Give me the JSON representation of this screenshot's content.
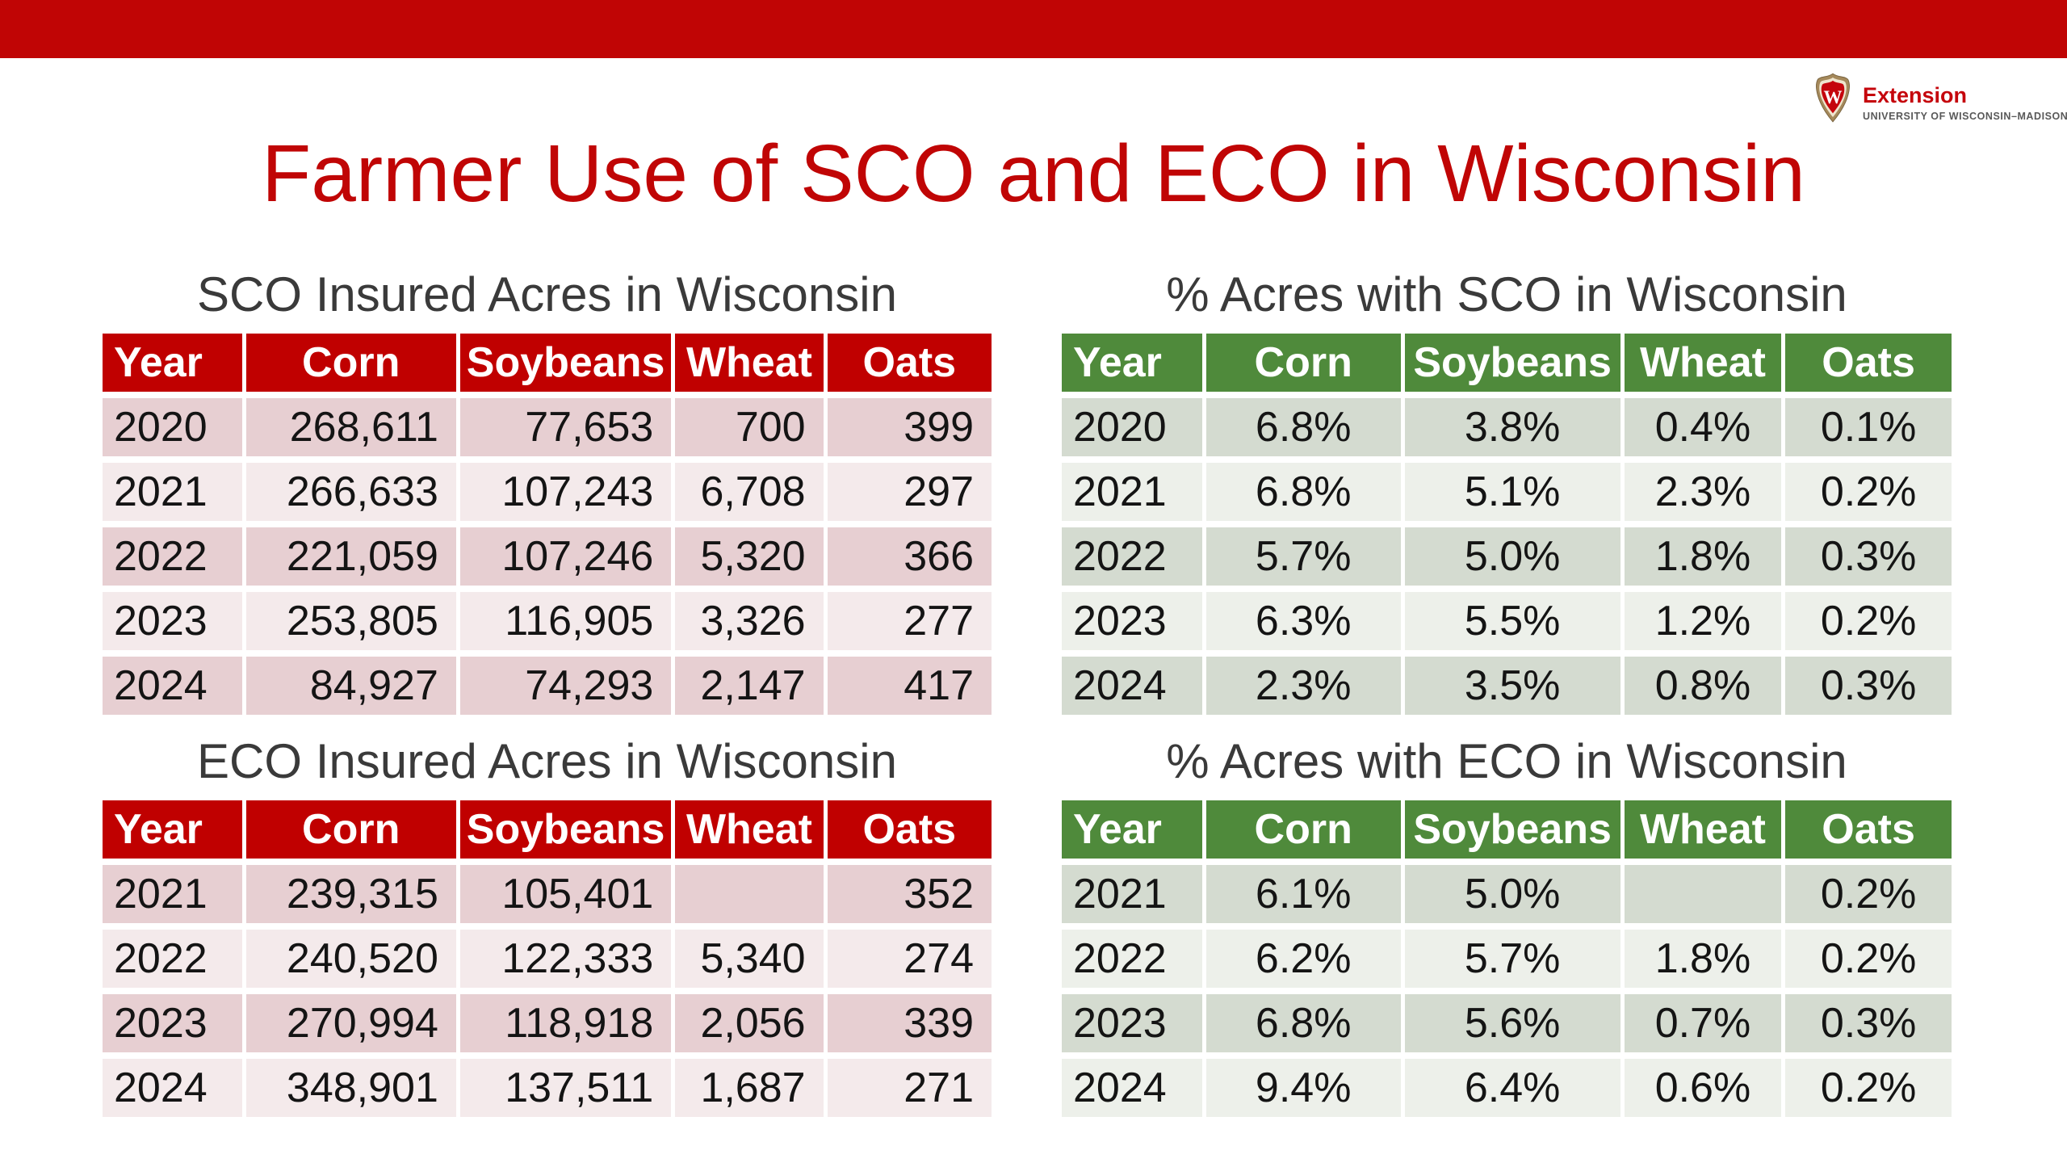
{
  "title": "Farmer Use of SCO and ECO in Wisconsin",
  "logo": {
    "crest_letter": "W",
    "extension": "Extension",
    "university": "UNIVERSITY OF WISCONSIN–MADISON"
  },
  "tables": [
    {
      "title": "SCO Insured Acres in Wisconsin",
      "theme": "red",
      "columns": [
        "Year",
        "Corn",
        "Soybeans",
        "Wheat",
        "Oats"
      ],
      "rows": [
        [
          "2020",
          "268,611",
          "77,653",
          "700",
          "399"
        ],
        [
          "2021",
          "266,633",
          "107,243",
          "6,708",
          "297"
        ],
        [
          "2022",
          "221,059",
          "107,246",
          "5,320",
          "366"
        ],
        [
          "2023",
          "253,805",
          "116,905",
          "3,326",
          "277"
        ],
        [
          "2024",
          "84,927",
          "74,293",
          "2,147",
          "417"
        ]
      ]
    },
    {
      "title": "% Acres with SCO in Wisconsin",
      "theme": "green",
      "columns": [
        "Year",
        "Corn",
        "Soybeans",
        "Wheat",
        "Oats"
      ],
      "rows": [
        [
          "2020",
          "6.8%",
          "3.8%",
          "0.4%",
          "0.1%"
        ],
        [
          "2021",
          "6.8%",
          "5.1%",
          "2.3%",
          "0.2%"
        ],
        [
          "2022",
          "5.7%",
          "5.0%",
          "1.8%",
          "0.3%"
        ],
        [
          "2023",
          "6.3%",
          "5.5%",
          "1.2%",
          "0.2%"
        ],
        [
          "2024",
          "2.3%",
          "3.5%",
          "0.8%",
          "0.3%"
        ]
      ]
    },
    {
      "title": "ECO Insured Acres in Wisconsin",
      "theme": "red",
      "columns": [
        "Year",
        "Corn",
        "Soybeans",
        "Wheat",
        "Oats"
      ],
      "rows": [
        [
          "2021",
          "239,315",
          "105,401",
          "",
          "352"
        ],
        [
          "2022",
          "240,520",
          "122,333",
          "5,340",
          "274"
        ],
        [
          "2023",
          "270,994",
          "118,918",
          "2,056",
          "339"
        ],
        [
          "2024",
          "348,901",
          "137,511",
          "1,687",
          "271"
        ]
      ]
    },
    {
      "title": "% Acres with ECO in Wisconsin",
      "theme": "green",
      "columns": [
        "Year",
        "Corn",
        "Soybeans",
        "Wheat",
        "Oats"
      ],
      "rows": [
        [
          "2021",
          "6.1%",
          "5.0%",
          "",
          "0.2%"
        ],
        [
          "2022",
          "6.2%",
          "5.7%",
          "1.8%",
          "0.2%"
        ],
        [
          "2023",
          "6.8%",
          "5.6%",
          "0.7%",
          "0.3%"
        ],
        [
          "2024",
          "9.4%",
          "6.4%",
          "0.6%",
          "0.2%"
        ]
      ]
    }
  ],
  "colors": {
    "bar_red": "#C00505",
    "title_red": "#C00505",
    "header_red": "#C00000",
    "header_green": "#4F8A3B",
    "red_row_dark": "#E7CFD2",
    "red_row_light": "#F4EAEB",
    "green_row_dark": "#D4DBD0",
    "green_row_light": "#EDF0EA",
    "section_title": "#3A3A3A",
    "cell_text": "#141414",
    "logo_red": "#C5050C",
    "logo_gray": "#595959"
  }
}
